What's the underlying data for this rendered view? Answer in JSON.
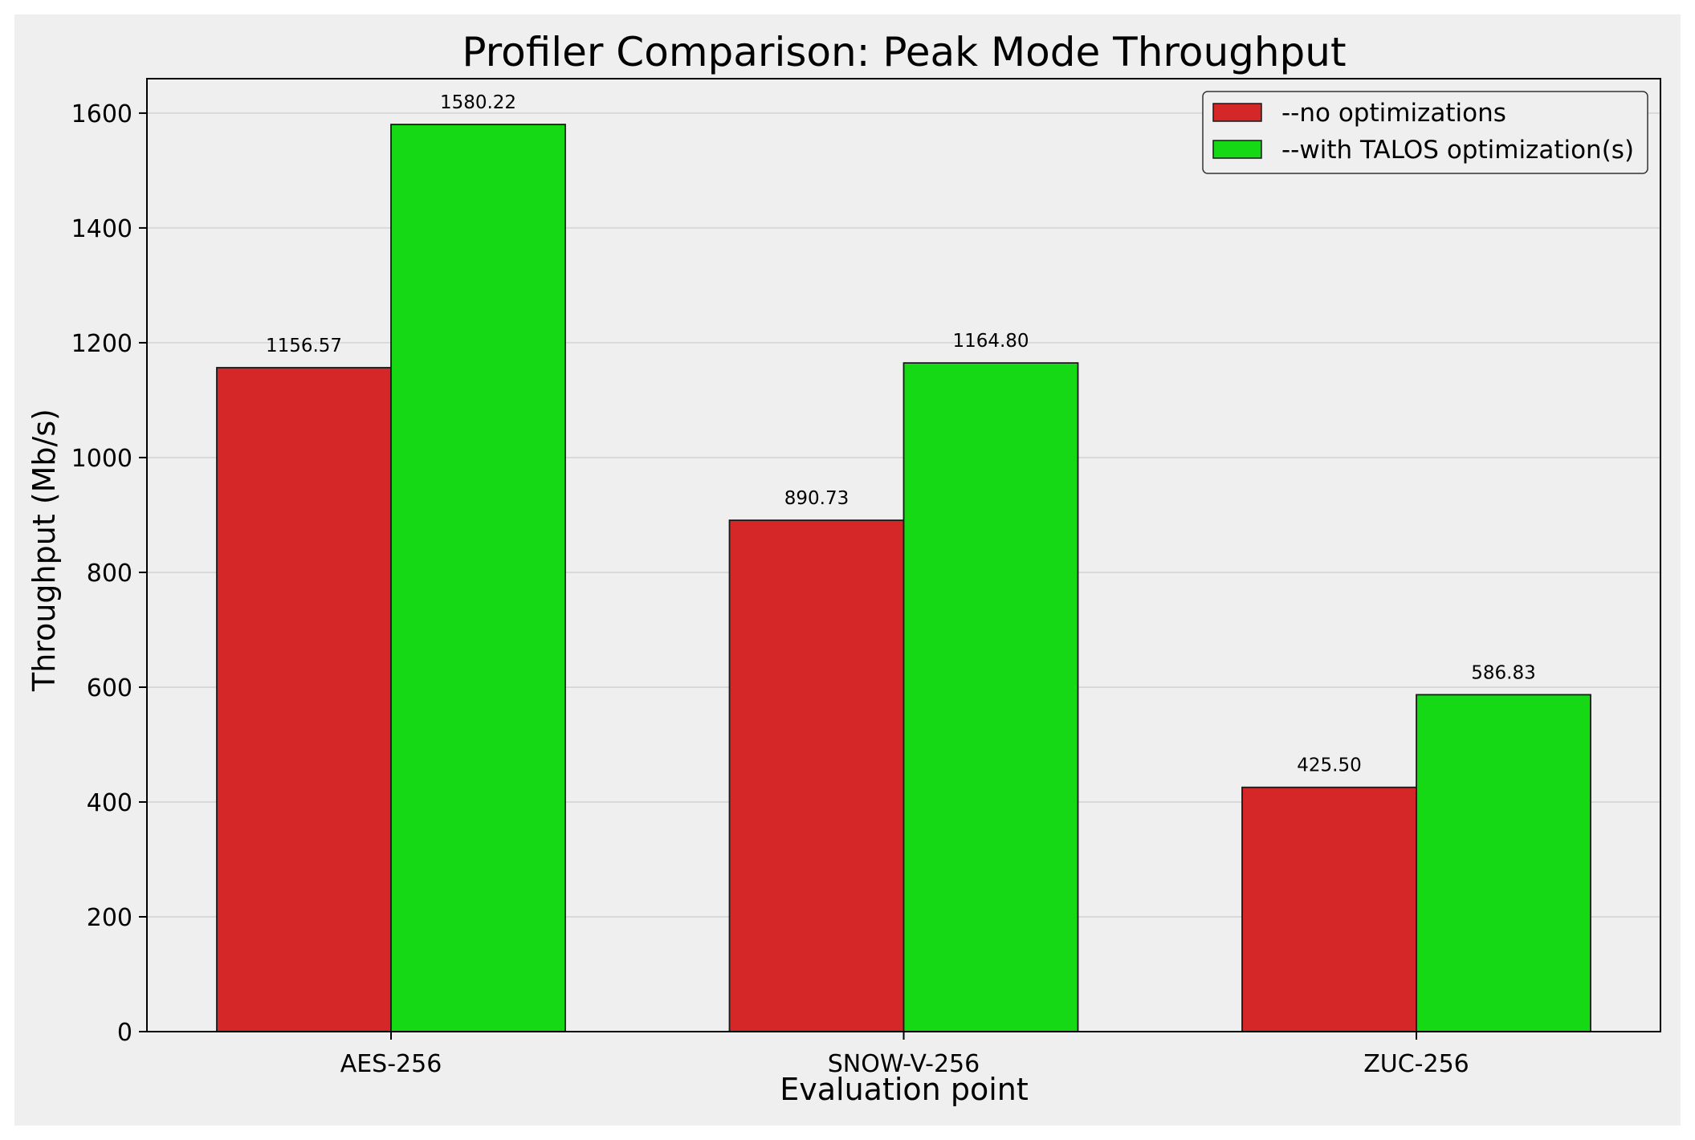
{
  "chart_data": {
    "type": "bar",
    "title": "Profiler Comparison: Peak Mode Throughput",
    "xlabel": "Evaluation point",
    "ylabel": "Throughput (Mb/s)",
    "categories": [
      "AES-256",
      "SNOW-V-256",
      "ZUC-256"
    ],
    "series": [
      {
        "name": "--no optimizations",
        "color": "#d62728",
        "values": [
          1156.57,
          890.73,
          425.5
        ],
        "labels": [
          "1156.57",
          "890.73",
          "425.50"
        ]
      },
      {
        "name": "--with TALOS optimization(s)",
        "color": "#15d915",
        "values": [
          1580.22,
          1164.8,
          586.83
        ],
        "labels": [
          "1580.22",
          "1164.80",
          "586.83"
        ]
      }
    ],
    "ylim": [
      0,
      1660
    ],
    "yticks": [
      0,
      200,
      400,
      600,
      800,
      1000,
      1200,
      1400,
      1600
    ],
    "grid": "horizontal",
    "legend_position": "top-right",
    "background_color": "#efefef"
  }
}
